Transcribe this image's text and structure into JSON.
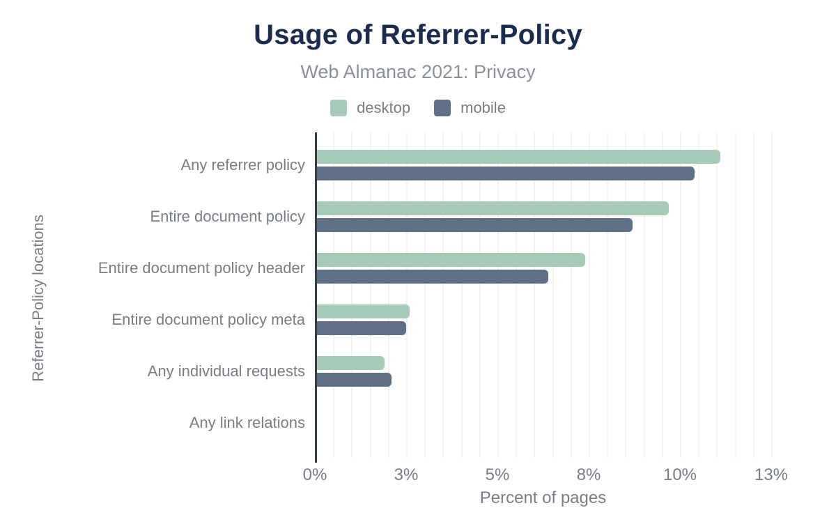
{
  "header": {
    "title": "Usage of Referrer-Policy",
    "subtitle": "Web Almanac 2021: Privacy"
  },
  "colors": {
    "title": "#1c2c4e",
    "text": "#787e85",
    "subtitle": "#8b9198",
    "axis_line": "#333b46",
    "gridline": "#f3f3f3",
    "desktop": "#a6cab8",
    "mobile": "#5f7086"
  },
  "chart_data": {
    "type": "bar",
    "orientation": "horizontal",
    "title": "Usage of Referrer-Policy",
    "subtitle": "Web Almanac 2021: Privacy",
    "categories": [
      "Any referrer policy",
      "Entire document policy",
      "Entire document policy header",
      "Entire document policy meta",
      "Any individual requests",
      "Any link relations"
    ],
    "series": [
      {
        "name": "desktop",
        "color": "#a6cab8",
        "values": [
          11.1,
          9.7,
          7.4,
          2.6,
          1.9,
          0
        ]
      },
      {
        "name": "mobile",
        "color": "#5f7086",
        "values": [
          10.4,
          8.7,
          6.4,
          2.5,
          2.1,
          0
        ]
      }
    ],
    "xlabel": "Percent of pages",
    "ylabel": "Referrer-Policy locations",
    "xlim": [
      0,
      12.5
    ],
    "xticks": [
      {
        "value": 0,
        "label": "0%"
      },
      {
        "value": 2.5,
        "label": "3%"
      },
      {
        "value": 5,
        "label": "5%"
      },
      {
        "value": 7.5,
        "label": "8%"
      },
      {
        "value": 10,
        "label": "10%"
      },
      {
        "value": 12.5,
        "label": "13%"
      }
    ],
    "grid_step": 0.5,
    "grid": "vertical",
    "legend_position": "top"
  }
}
